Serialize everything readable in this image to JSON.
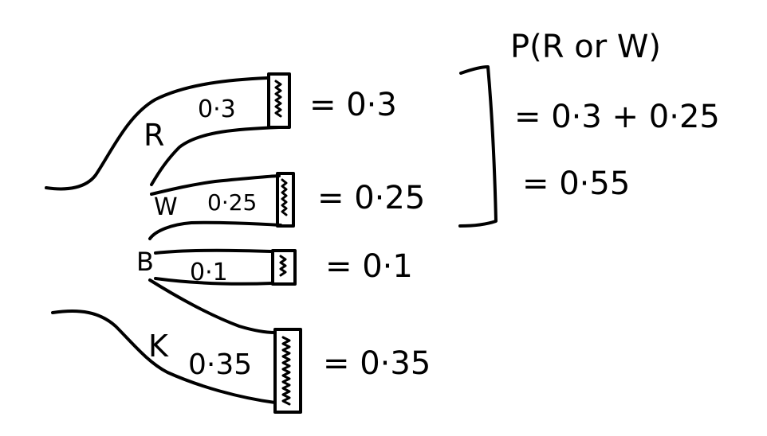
{
  "branches": [
    {
      "letter": "R",
      "prob_label": "0·3",
      "result": "= 0·3"
    },
    {
      "letter": "W",
      "prob_label": "0·25",
      "result": "= 0·25"
    },
    {
      "letter": "B",
      "prob_label": "0·1",
      "result": "= 0·1"
    },
    {
      "letter": "K",
      "prob_label": "0·35",
      "result": "= 0·35"
    }
  ],
  "calculation": {
    "line1": "P(R or W)",
    "line2": "= 0·3 + 0·25",
    "line3": "= 0·55"
  }
}
